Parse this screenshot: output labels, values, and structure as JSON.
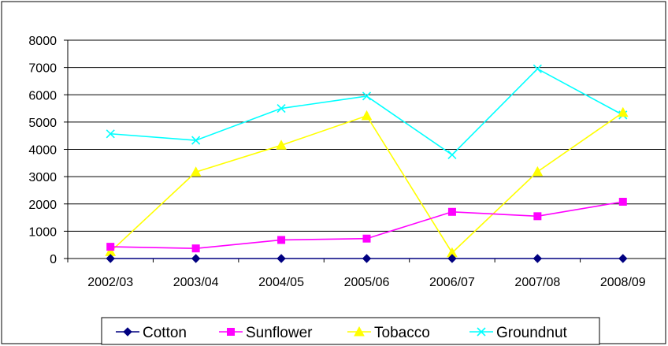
{
  "chart_data": {
    "type": "line",
    "title": "",
    "xlabel": "",
    "ylabel": "",
    "categories": [
      "2002/03",
      "2003/04",
      "2004/05",
      "2005/06",
      "2006/07",
      "2007/08",
      "2008/09"
    ],
    "ylim": [
      0,
      8000
    ],
    "yticks": [
      "0",
      "1000",
      "2000",
      "3000",
      "4000",
      "5000",
      "6000",
      "7000",
      "8000"
    ],
    "grid": true,
    "legend": "bottom",
    "series": [
      {
        "name": "Cotton",
        "color": "#000080",
        "marker": "diamond",
        "values": [
          0,
          0,
          0,
          0,
          0,
          0,
          0
        ]
      },
      {
        "name": "Sunflower",
        "color": "#ff00ff",
        "marker": "square",
        "values": [
          430,
          370,
          680,
          730,
          1710,
          1550,
          2080
        ]
      },
      {
        "name": "Tobacco",
        "color": "#ffff00",
        "marker": "triangle",
        "values": [
          250,
          3170,
          4150,
          5230,
          210,
          3180,
          5350
        ]
      },
      {
        "name": "Groundnut",
        "color": "#00ffff",
        "marker": "x",
        "values": [
          4570,
          4330,
          5500,
          5950,
          3800,
          6950,
          5260
        ]
      }
    ]
  }
}
